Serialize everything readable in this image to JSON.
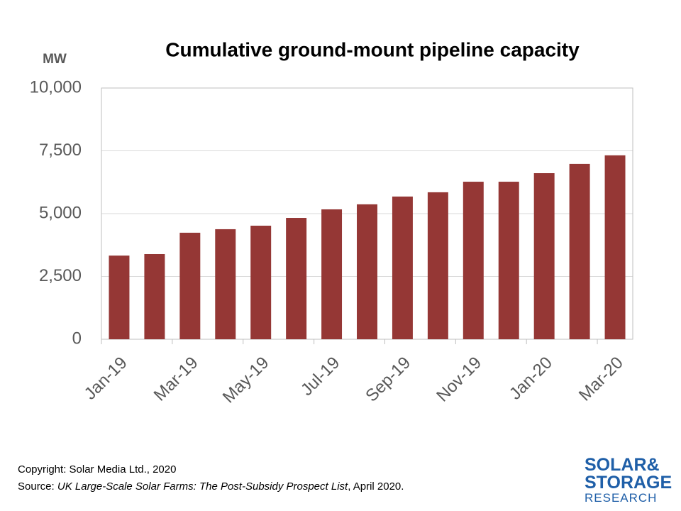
{
  "chart_data": {
    "type": "bar",
    "title": "Cumulative ground-mount pipeline capacity",
    "y_axis_label": "MW",
    "categories": [
      "Jan-19",
      null,
      "Mar-19",
      null,
      "May-19",
      null,
      "Jul-19",
      null,
      "Sep-19",
      null,
      "Nov-19",
      null,
      "Jan-20",
      null,
      "Mar-20"
    ],
    "values": [
      3330,
      3390,
      4240,
      4380,
      4520,
      4830,
      5170,
      5370,
      5680,
      5850,
      6270,
      6270,
      6610,
      6980,
      7320
    ],
    "color": "#953735",
    "ylim": [
      0,
      10000
    ],
    "yticks": [
      0,
      {
        "value": 2500,
        "label": "2,500"
      },
      {
        "value": 5000,
        "label": "5,000"
      },
      {
        "value": 7500,
        "label": "7,500"
      },
      {
        "value": 10000,
        "label": "10,000"
      }
    ],
    "grid": true
  },
  "footer": {
    "copyright": "Copyright: Solar Media Ltd., 2020",
    "source_prefix": "Source: ",
    "source_title": "UK Large-Scale Solar Farms: The Post-Subsidy Prospect List",
    "source_suffix": ", April 2020."
  },
  "logo": {
    "line1": "SOLAR&",
    "line2": "STORAGE",
    "line3": "RESEARCH"
  }
}
